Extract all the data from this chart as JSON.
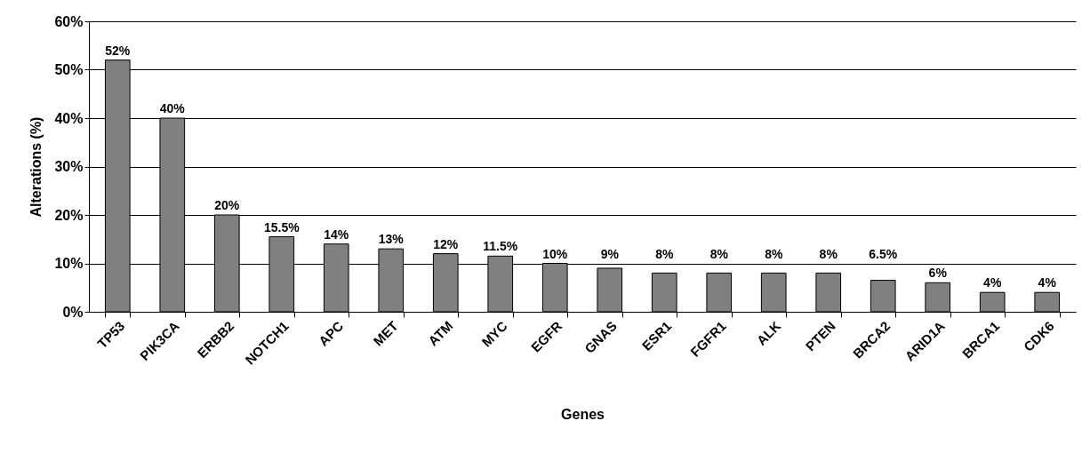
{
  "chart_data": {
    "type": "bar",
    "xlabel": "Genes",
    "ylabel": "Alterations (%)",
    "categories": [
      "TP53",
      "PIK3CA",
      "ERBB2",
      "NOTCH1",
      "APC",
      "MET",
      "ATM",
      "MYC",
      "EGFR",
      "GNAS",
      "ESR1",
      "FGFR1",
      "ALK",
      "PTEN",
      "BRCA2",
      "ARID1A",
      "BRCA1",
      "CDK6"
    ],
    "values": [
      52,
      40,
      20,
      15.5,
      14,
      13,
      12,
      11.5,
      10,
      9,
      8,
      8,
      8,
      8,
      6.5,
      6,
      4,
      4
    ],
    "value_labels": [
      "52%",
      "40%",
      "20%",
      "15.5%",
      "14%",
      "13%",
      "12%",
      "11.5%",
      "10%",
      "9%",
      "8%",
      "8%",
      "8%",
      "8%",
      "6.5%",
      "6%",
      "4%",
      "4%"
    ],
    "color": "#808080",
    "ylim": [
      0,
      60
    ],
    "yticks": [
      {
        "value": 0,
        "label": "0%"
      },
      {
        "value": 10,
        "label": "10%"
      },
      {
        "value": 20,
        "label": "20%"
      },
      {
        "value": 30,
        "label": "30%"
      },
      {
        "value": 40,
        "label": "40%"
      },
      {
        "value": 50,
        "label": "50%"
      },
      {
        "value": 60,
        "label": "60%"
      }
    ],
    "grid": "y"
  }
}
